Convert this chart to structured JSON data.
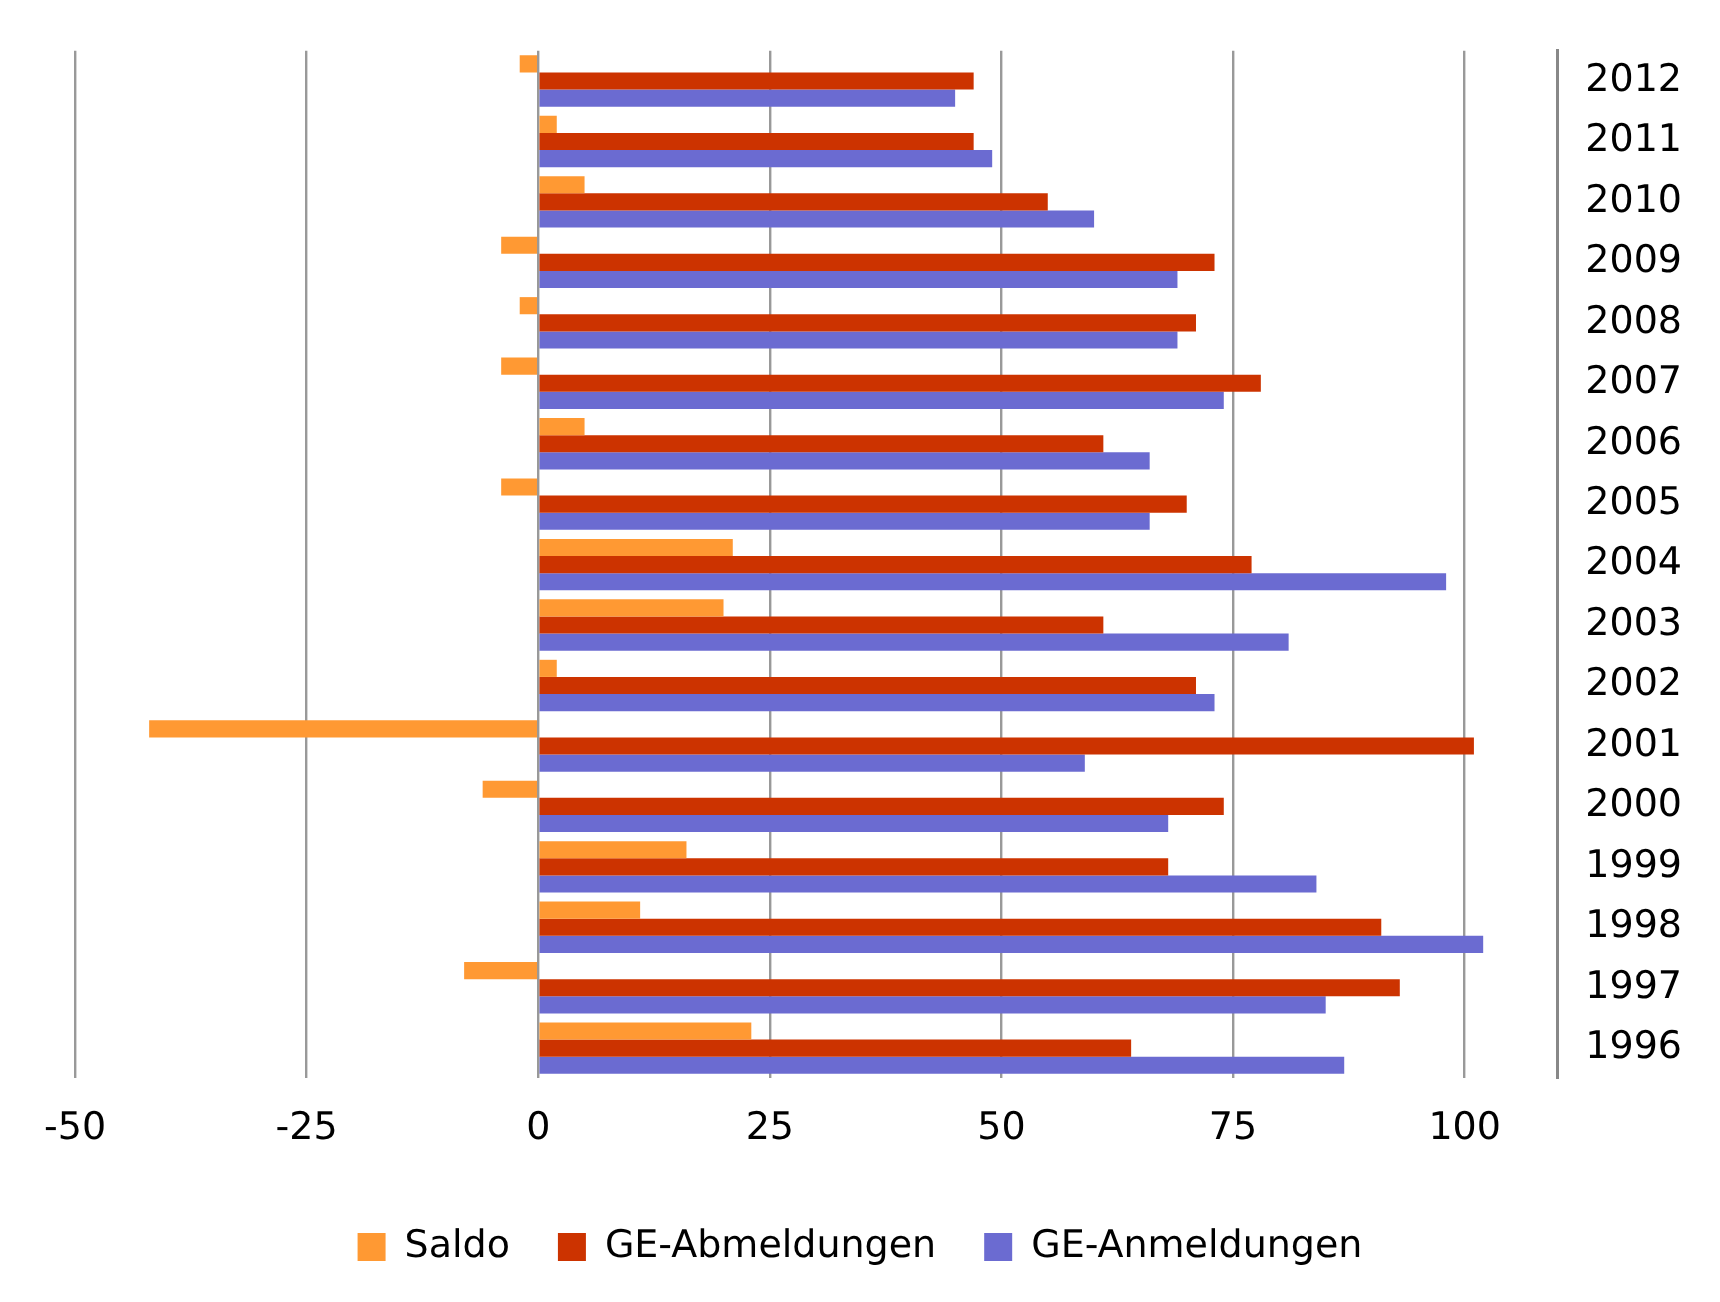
{
  "chart_data": {
    "type": "bar",
    "orientation": "horizontal",
    "categories": [
      "2012",
      "2011",
      "2010",
      "2009",
      "2008",
      "2007",
      "2006",
      "2005",
      "2004",
      "2003",
      "2002",
      "2001",
      "2000",
      "1999",
      "1998",
      "1997",
      "1996"
    ],
    "series": [
      {
        "name": "Saldo",
        "color": "#ff9933",
        "values": [
          -2,
          2,
          5,
          -4,
          -2,
          -4,
          5,
          -4,
          21,
          20,
          2,
          -42,
          -6,
          16,
          11,
          -8,
          23
        ]
      },
      {
        "name": "GE-Abmeldungen",
        "color": "#cc3300",
        "values": [
          47,
          47,
          55,
          73,
          71,
          78,
          61,
          70,
          77,
          61,
          71,
          101,
          74,
          68,
          91,
          93,
          64
        ]
      },
      {
        "name": "GE-Anmeldungen",
        "color": "#6b6bd1",
        "values": [
          45,
          49,
          60,
          69,
          69,
          74,
          66,
          66,
          98,
          81,
          73,
          59,
          68,
          84,
          102,
          85,
          87
        ]
      }
    ],
    "xlim": [
      -50,
      110
    ],
    "xticks": [
      -50,
      -25,
      0,
      25,
      50,
      75,
      100
    ],
    "grid": "x",
    "legend": "bottom"
  }
}
